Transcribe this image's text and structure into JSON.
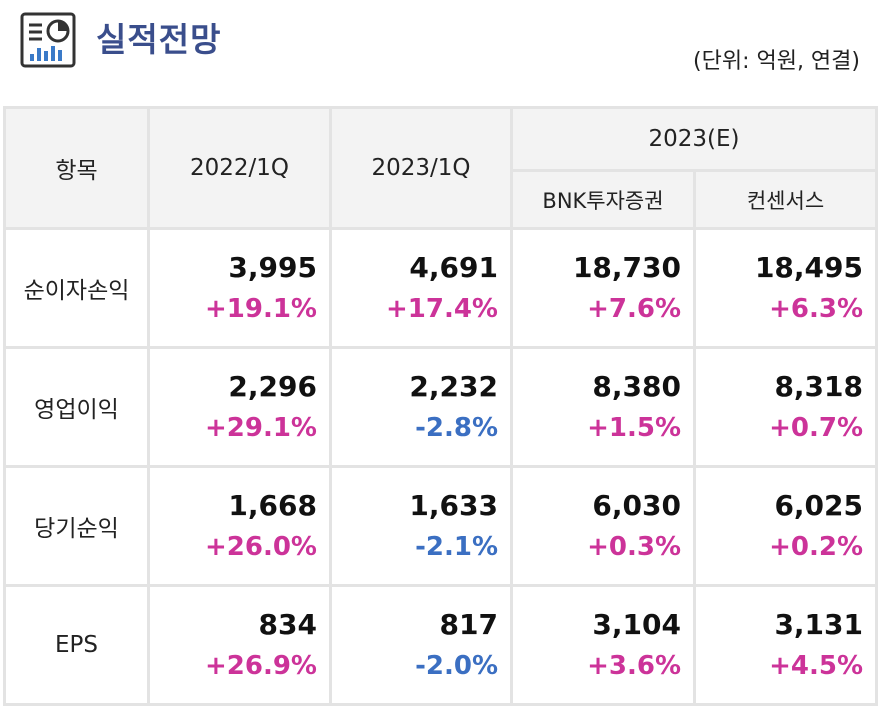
{
  "header": {
    "icon": "report-chart-icon",
    "title": "실적전망",
    "unit": "(단위: 억원, 연결)"
  },
  "table": {
    "item_header": "항목",
    "columns": [
      "2022/1Q",
      "2023/1Q"
    ],
    "group_header": "2023(E)",
    "sub_columns": [
      "BNK투자증권",
      "컨센서스"
    ],
    "rows": [
      {
        "label": "순이자손익",
        "cells": [
          {
            "value": "3,995",
            "change": "+19.1%",
            "direction": "up"
          },
          {
            "value": "4,691",
            "change": "+17.4%",
            "direction": "up"
          },
          {
            "value": "18,730",
            "change": "+7.6%",
            "direction": "up"
          },
          {
            "value": "18,495",
            "change": "+6.3%",
            "direction": "up"
          }
        ]
      },
      {
        "label": "영업이익",
        "cells": [
          {
            "value": "2,296",
            "change": "+29.1%",
            "direction": "up"
          },
          {
            "value": "2,232",
            "change": "-2.8%",
            "direction": "down"
          },
          {
            "value": "8,380",
            "change": "+1.5%",
            "direction": "up"
          },
          {
            "value": "8,318",
            "change": "+0.7%",
            "direction": "up"
          }
        ]
      },
      {
        "label": "당기순익",
        "cells": [
          {
            "value": "1,668",
            "change": "+26.0%",
            "direction": "up"
          },
          {
            "value": "1,633",
            "change": "-2.1%",
            "direction": "down"
          },
          {
            "value": "6,030",
            "change": "+0.3%",
            "direction": "up"
          },
          {
            "value": "6,025",
            "change": "+0.2%",
            "direction": "up"
          }
        ]
      },
      {
        "label": "EPS",
        "cells": [
          {
            "value": "834",
            "change": "+26.9%",
            "direction": "up"
          },
          {
            "value": "817",
            "change": "-2.0%",
            "direction": "down"
          },
          {
            "value": "3,104",
            "change": "+3.6%",
            "direction": "up"
          },
          {
            "value": "3,131",
            "change": "+4.5%",
            "direction": "up"
          }
        ]
      }
    ]
  },
  "colors": {
    "title": "#3a4e8c",
    "positive": "#cc3399",
    "negative": "#3b6fc2",
    "header_bg": "#f3f3f3",
    "border": "#e3e3e3"
  }
}
